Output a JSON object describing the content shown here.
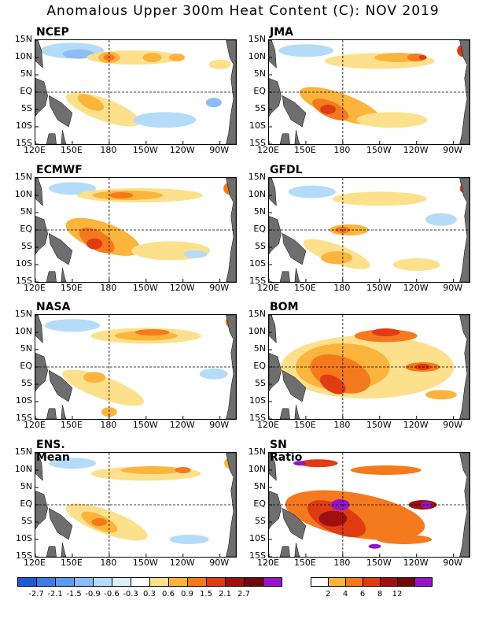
{
  "title": "Anomalous Upper 300m Heat Content (C): NOV 2019",
  "axes": {
    "lat_labels": [
      "15N",
      "10N",
      "5N",
      "EQ",
      "5S",
      "10S",
      "15S"
    ],
    "lon_labels": [
      "120E",
      "150E",
      "180",
      "150W",
      "120W",
      "90W"
    ]
  },
  "panels": [
    {
      "name": "NCEP",
      "type": "anomaly"
    },
    {
      "name": "JMA",
      "type": "anomaly"
    },
    {
      "name": "ECMWF",
      "type": "anomaly"
    },
    {
      "name": "GFDL",
      "type": "anomaly"
    },
    {
      "name": "NASA",
      "type": "anomaly"
    },
    {
      "name": "BOM",
      "type": "anomaly"
    },
    {
      "name": "ENS. Mean",
      "type": "anomaly"
    },
    {
      "name": "SN Ratio",
      "type": "snr"
    }
  ],
  "legend_anomaly": {
    "labels": [
      "-2.7",
      "-2.1",
      "-1.5",
      "-0.9",
      "-0.6",
      "-0.3",
      "0.3",
      "0.6",
      "0.9",
      "1.5",
      "2.1",
      "2.7"
    ],
    "colors": [
      "#1e5ad6",
      "#3c7ce8",
      "#5a9cf0",
      "#8cbef5",
      "#b4dcf8",
      "#d8f0fb",
      "#ffffff",
      "#fde08c",
      "#fbb43c",
      "#f57a1e",
      "#e03c14",
      "#a01010",
      "#6e0a0a",
      "#9614c8"
    ]
  },
  "legend_snr": {
    "labels": [
      "2",
      "4",
      "6",
      "8",
      "12"
    ],
    "colors": [
      "#ffffff",
      "#fbb43c",
      "#f57a1e",
      "#e03c14",
      "#a01010",
      "#6e0a0a",
      "#9614c8"
    ]
  }
}
